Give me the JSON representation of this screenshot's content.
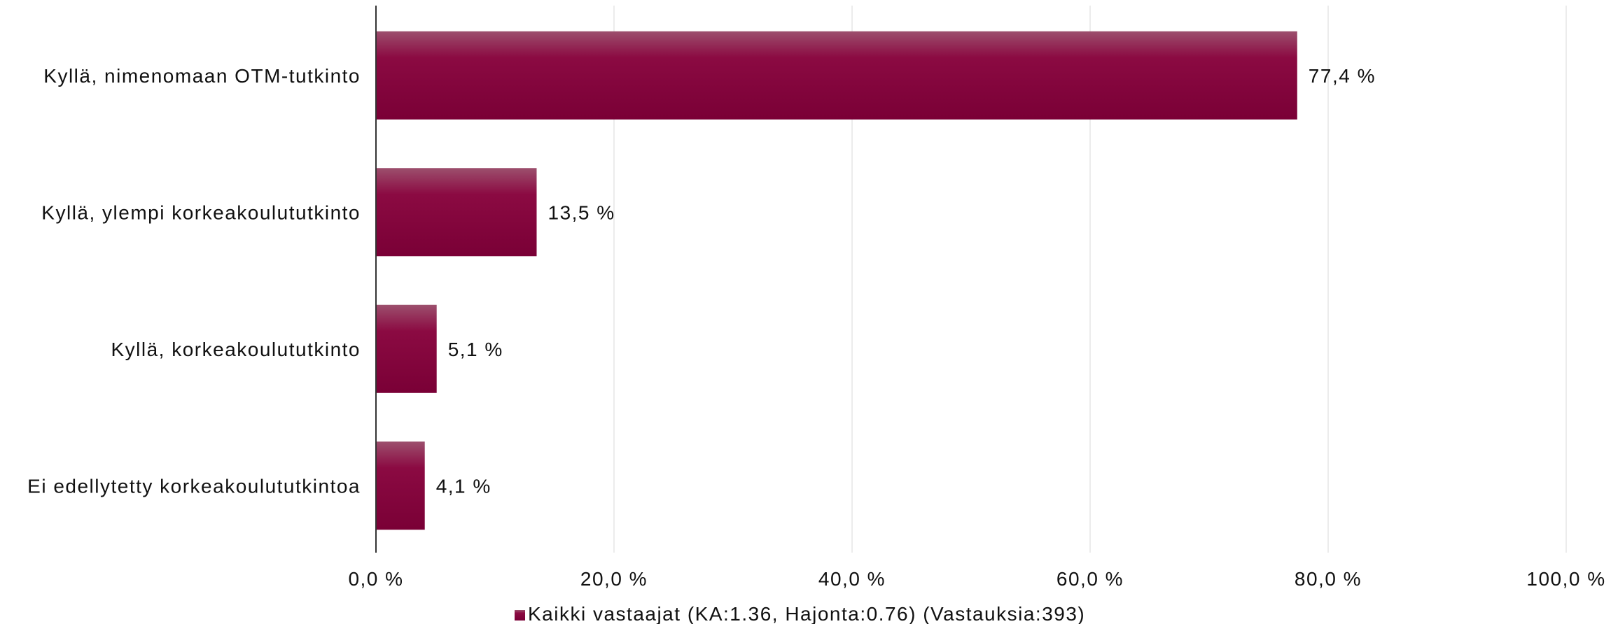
{
  "chart_data": {
    "type": "bar",
    "orientation": "horizontal",
    "categories": [
      "Kyllä, nimenomaan OTM-tutkinto",
      "Kyllä, ylempi korkeakoulututkinto",
      "Kyllä, korkeakoulututkinto",
      "Ei edellytetty korkeakoulututkintoa"
    ],
    "series": [
      {
        "name": "Kaikki vastaajat (KA:1.36, Hajonta:0.76) (Vastauksia:393)",
        "values": [
          77.4,
          13.5,
          5.1,
          4.1
        ],
        "data_labels": [
          "77,4 %",
          "13,5 %",
          "5,1 %",
          "4,1 %"
        ],
        "color": "#8a0a3d"
      }
    ],
    "xlim": [
      0,
      100
    ],
    "x_ticks": [
      0,
      20,
      40,
      60,
      80,
      100
    ],
    "x_tick_labels": [
      "0,0 %",
      "20,0 %",
      "40,0 %",
      "60,0 %",
      "80,0 %",
      "100,0 %"
    ],
    "grid": "vertical",
    "legend_position": "bottom"
  }
}
